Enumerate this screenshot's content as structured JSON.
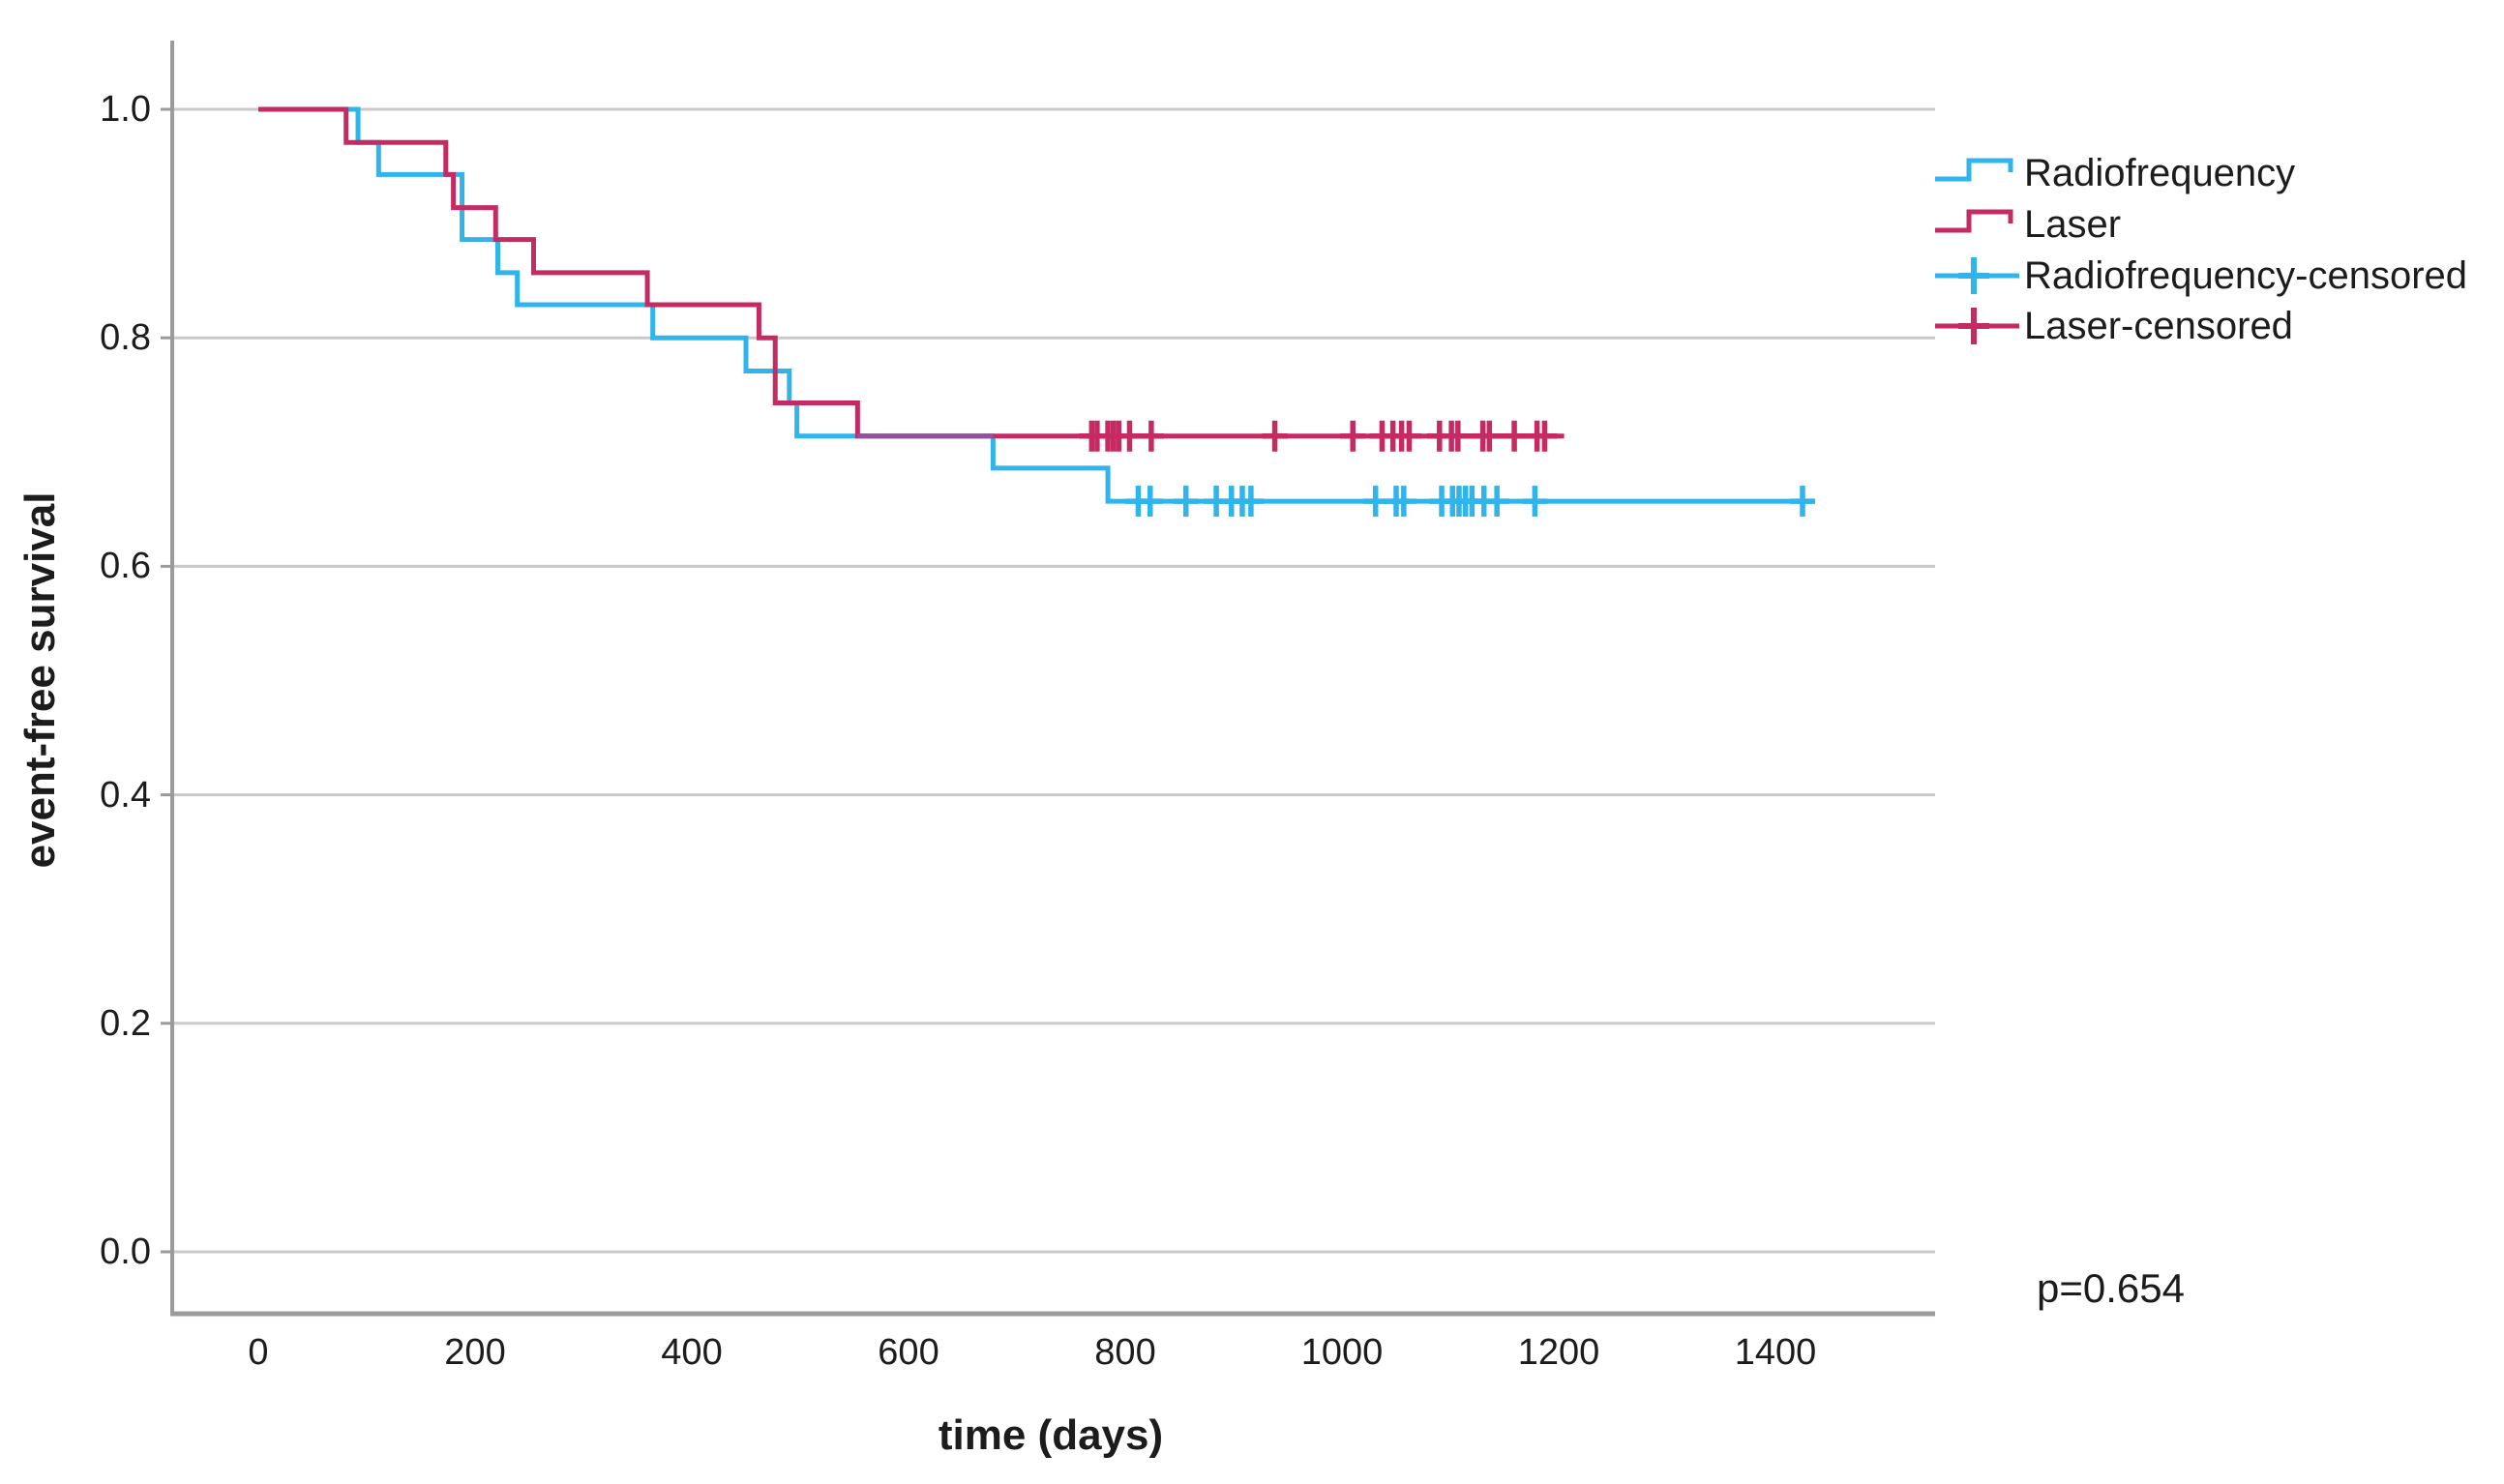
{
  "chart_data": {
    "type": "line",
    "subtype": "kaplan-meier-step-survival",
    "title": "",
    "xlabel": "time (days)",
    "ylabel": "event-free survival",
    "p_value_label": "p=0.654",
    "x_ticks": [
      0,
      200,
      400,
      600,
      800,
      1000,
      1200,
      1400
    ],
    "y_ticks": [
      1.0,
      0.8,
      0.6,
      0.4,
      0.2,
      0.0
    ],
    "xlim": [
      0,
      1570
    ],
    "ylim": [
      0,
      1.06
    ],
    "grid": "horizontal",
    "legend_position": "right",
    "colors": {
      "radiofrequency": "#2FB4EC",
      "laser": "#C42B63",
      "overlap": "#8D5499",
      "grid": "#C9C9C9",
      "axis": "#9B9B9B",
      "text": "#1C1C1C"
    },
    "series": [
      {
        "name": "Radiofrequency",
        "color_key": "radiofrequency",
        "steps": [
          [
            0,
            1.0
          ],
          [
            92,
            0.971
          ],
          [
            111,
            0.943
          ],
          [
            188,
            0.886
          ],
          [
            221,
            0.857
          ],
          [
            239,
            0.829
          ],
          [
            364,
            0.8
          ],
          [
            450,
            0.771
          ],
          [
            490,
            0.743
          ],
          [
            497,
            0.714
          ],
          [
            678,
            0.686
          ],
          [
            784,
            0.657
          ]
        ],
        "end_time": 1435,
        "censored_value": 0.657,
        "censored_times": [
          812,
          823,
          856,
          884,
          898,
          908,
          916,
          1031,
          1050,
          1057,
          1092,
          1102,
          1108,
          1114,
          1120,
          1131,
          1143,
          1178,
          1425
        ]
      },
      {
        "name": "Laser",
        "color_key": "laser",
        "steps": [
          [
            0,
            1.0
          ],
          [
            81,
            0.971
          ],
          [
            173,
            0.943
          ],
          [
            180,
            0.914
          ],
          [
            219,
            0.886
          ],
          [
            254,
            0.857
          ],
          [
            359,
            0.829
          ],
          [
            462,
            0.8
          ],
          [
            477,
            0.743
          ],
          [
            553,
            0.714
          ]
        ],
        "end_time": 1205,
        "censored_value": 0.714,
        "censored_times": [
          769,
          774,
          784,
          789,
          794,
          804,
          824,
          938,
          1010,
          1037,
          1047,
          1055,
          1062,
          1090,
          1101,
          1107,
          1130,
          1136,
          1159,
          1180,
          1187
        ]
      }
    ],
    "overlap_segment": {
      "from": 553,
      "to": 678,
      "value": 0.714
    },
    "legend": [
      {
        "label": "Radiofrequency",
        "type": "line",
        "color_key": "radiofrequency"
      },
      {
        "label": "Laser",
        "type": "line",
        "color_key": "laser"
      },
      {
        "label": "Radiofrequency-censored",
        "type": "censored",
        "color_key": "radiofrequency"
      },
      {
        "label": "Laser-censored",
        "type": "censored",
        "color_key": "laser"
      }
    ]
  }
}
